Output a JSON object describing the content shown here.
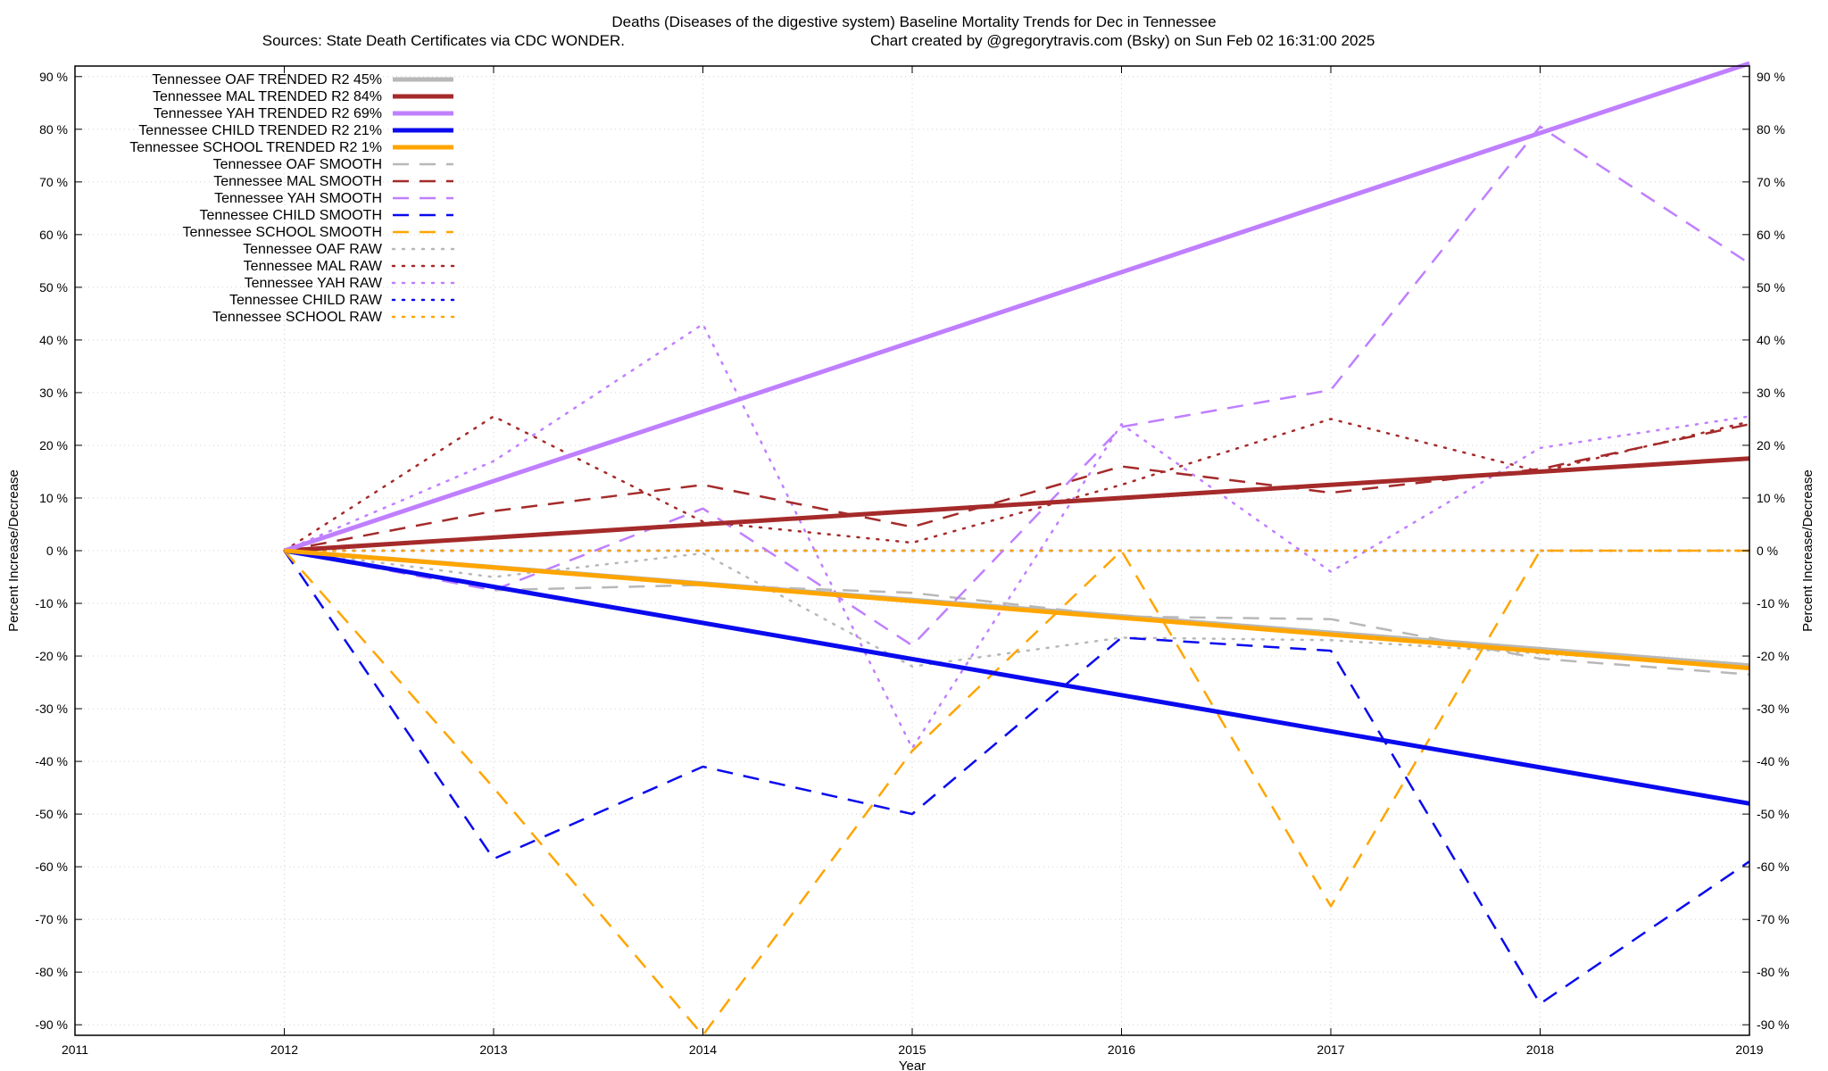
{
  "chart_data": {
    "type": "line",
    "title": "Deaths (Diseases of the digestive system)  Baseline Mortality Trends for Dec in Tennessee",
    "subtitle_left": "Sources: State Death Certificates via CDC WONDER.",
    "subtitle_right": "Chart created by @gregorytravis.com (Bsky) on Sun Feb 02 16:31:00 2025",
    "xlabel": "Year",
    "ylabel": "Percent Increase/Decrease",
    "ylabel_right": "Percent Increase/Decrease",
    "xlim": [
      2011,
      2019
    ],
    "ylim": [
      -92,
      92
    ],
    "x_ticks": [
      "2011",
      "2012",
      "2013",
      "2014",
      "2015",
      "2016",
      "2017",
      "2018",
      "2019"
    ],
    "y_ticks": [
      "90 %",
      "80 %",
      "70 %",
      "60 %",
      "50 %",
      "40 %",
      "30 %",
      "20 %",
      "10 %",
      "0 %",
      "-10 %",
      "-20 %",
      "-30 %",
      "-40 %",
      "-50 %",
      "-60 %",
      "-70 %",
      "-80 %",
      "-90 %"
    ],
    "grid": true,
    "legend_position": "top-left",
    "series": [
      {
        "name": "Tennessee OAF TRENDED R2  45%",
        "color": "#b8b8b8",
        "style": "solid",
        "x": [
          2012,
          2019
        ],
        "y": [
          0,
          -21.8
        ]
      },
      {
        "name": "Tennessee MAL TRENDED R2  84%",
        "color": "#a52a2a",
        "style": "solid",
        "x": [
          2012,
          2019
        ],
        "y": [
          0,
          17.5
        ]
      },
      {
        "name": "Tennessee YAH TRENDED R2  69%",
        "color": "#bf7fff",
        "style": "solid",
        "x": [
          2012,
          2019
        ],
        "y": [
          0,
          92.5
        ]
      },
      {
        "name": "Tennessee CHILD TRENDED R2  21%",
        "color": "#0a0aee",
        "style": "solid",
        "x": [
          2012,
          2019
        ],
        "y": [
          0,
          -48
        ]
      },
      {
        "name": "Tennessee SCHOOL TRENDED R2   1%",
        "color": "#ffa500",
        "style": "solid",
        "x": [
          2012,
          2019
        ],
        "y": [
          0,
          -22.3
        ]
      },
      {
        "name": "Tennessee OAF SMOOTH",
        "color": "#b8b8b8",
        "style": "dashed",
        "x": [
          2012,
          2013,
          2014,
          2015,
          2016,
          2017,
          2018,
          2019
        ],
        "y": [
          0,
          -7.5,
          -6.5,
          -8,
          -12.5,
          -13,
          -20.5,
          -23.5
        ]
      },
      {
        "name": "Tennessee MAL SMOOTH",
        "color": "#a52a2a",
        "style": "dashed",
        "x": [
          2012,
          2013,
          2014,
          2015,
          2016,
          2017,
          2018,
          2019
        ],
        "y": [
          0,
          7.5,
          12.5,
          4.5,
          16,
          11,
          15.5,
          24
        ]
      },
      {
        "name": "Tennessee YAH SMOOTH",
        "color": "#bf7fff",
        "style": "dashed",
        "x": [
          2012,
          2013,
          2014,
          2015,
          2016,
          2017,
          2018,
          2019
        ],
        "y": [
          0,
          -7.5,
          8,
          -18,
          23.5,
          30.5,
          80.5,
          54.5
        ]
      },
      {
        "name": "Tennessee CHILD SMOOTH",
        "color": "#0a0aee",
        "style": "dashed",
        "x": [
          2012,
          2013,
          2014,
          2015,
          2016,
          2017,
          2018,
          2019
        ],
        "y": [
          0,
          -58.5,
          -41,
          -50,
          -16.5,
          -19,
          -86,
          -59
        ]
      },
      {
        "name": "Tennessee SCHOOL SMOOTH",
        "color": "#ffa500",
        "style": "dashed",
        "x": [
          2012,
          2013,
          2014,
          2015,
          2016,
          2017,
          2018,
          2019
        ],
        "y": [
          0,
          -45,
          -92,
          -38,
          0,
          -67.5,
          0,
          0
        ]
      },
      {
        "name": "Tennessee OAF RAW",
        "color": "#b8b8b8",
        "style": "dotted",
        "x": [
          2012,
          2013,
          2014,
          2015,
          2016,
          2017,
          2018,
          2019
        ],
        "y": [
          0,
          -5,
          -0.5,
          -22,
          -16.5,
          -17,
          -19.5,
          -22
        ]
      },
      {
        "name": "Tennessee MAL RAW",
        "color": "#a52a2a",
        "style": "dotted",
        "x": [
          2012,
          2013,
          2014,
          2015,
          2016,
          2017,
          2018,
          2019
        ],
        "y": [
          0,
          25.5,
          5.5,
          1.5,
          12.5,
          25,
          15,
          24.5
        ]
      },
      {
        "name": "Tennessee YAH RAW",
        "color": "#bf7fff",
        "style": "dotted",
        "x": [
          2012,
          2013,
          2014,
          2015,
          2016,
          2017,
          2018,
          2019
        ],
        "y": [
          0,
          17,
          43,
          -37.5,
          24,
          -4,
          19.5,
          25.5
        ]
      },
      {
        "name": "Tennessee CHILD RAW",
        "color": "#0a0aee",
        "style": "dotted",
        "x": [
          2012,
          2013,
          2014,
          2015,
          2016,
          2017,
          2018,
          2019
        ],
        "y": [
          0,
          0,
          0,
          0,
          0,
          0,
          0,
          0
        ]
      },
      {
        "name": "Tennessee SCHOOL RAW",
        "color": "#ffa500",
        "style": "dotted",
        "x": [
          2012,
          2013,
          2014,
          2015,
          2016,
          2017,
          2018,
          2019
        ],
        "y": [
          0,
          0,
          0,
          0,
          0,
          0,
          0,
          0
        ]
      }
    ]
  }
}
